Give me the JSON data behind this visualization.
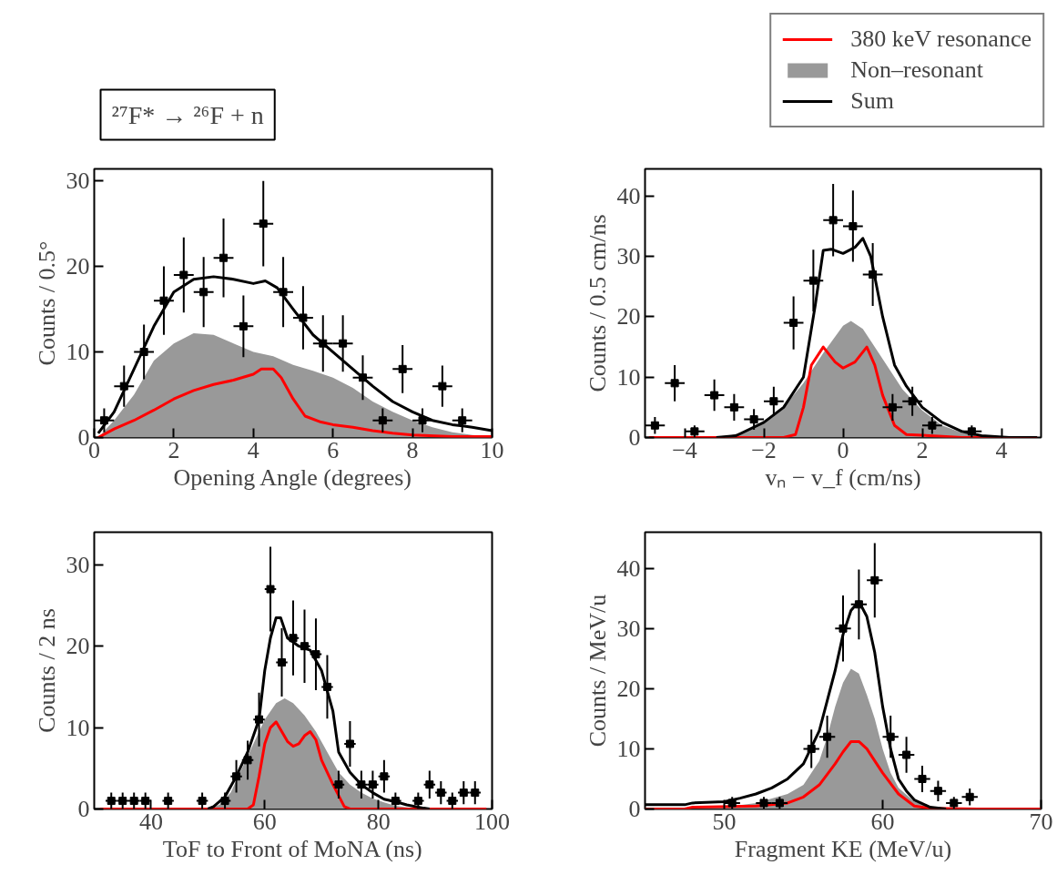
{
  "chart_data": [
    {
      "type": "line",
      "title": "²⁷F* → ²⁶F + n",
      "xlabel": "Opening Angle (degrees)",
      "ylabel": "Counts / 0.5°",
      "xlim": [
        0,
        10
      ],
      "ylim": [
        0,
        31.4
      ],
      "xticks": [
        0,
        2,
        4,
        6,
        8,
        10
      ],
      "yticks": [
        0,
        10,
        20,
        30
      ],
      "series": [
        {
          "type": "area",
          "color": "#999999",
          "x": [
            0.1,
            0.5,
            1,
            1.5,
            2,
            2.5,
            3,
            3.5,
            4,
            4.5,
            5,
            5.5,
            6,
            6.5,
            7,
            7.5,
            8,
            8.5,
            9,
            9.5,
            10
          ],
          "values": [
            0,
            2,
            5,
            9,
            11,
            12.2,
            12,
            11,
            10,
            9.5,
            8.5,
            7.8,
            7,
            5.8,
            4.2,
            3,
            2,
            1.2,
            0.6,
            0.3,
            0.1
          ]
        },
        {
          "color": "#ff0000",
          "x": [
            0.1,
            0.5,
            1,
            1.5,
            2,
            2.5,
            3,
            3.5,
            4,
            4.2,
            4.5,
            4.7,
            5,
            5.3,
            5.7,
            6,
            6.5,
            7,
            7.5,
            8,
            9,
            10
          ],
          "values": [
            0,
            1,
            2,
            3.2,
            4.5,
            5.5,
            6.2,
            6.7,
            7.4,
            8,
            8,
            7,
            4.5,
            2.5,
            1.8,
            1.5,
            1.2,
            0.8,
            0.5,
            0.3,
            0.1,
            0.1
          ]
        },
        {
          "color": "#000000",
          "x": [
            0.1,
            0.5,
            1,
            1.5,
            2,
            2.5,
            3,
            3.5,
            4,
            4.3,
            4.6,
            5,
            5.5,
            6,
            6.5,
            7,
            7.5,
            8,
            8.5,
            9,
            9.5,
            10
          ],
          "values": [
            0.5,
            3,
            8,
            13,
            17,
            18.5,
            18.8,
            18.5,
            18,
            18.3,
            17.5,
            15,
            12,
            10,
            8,
            6,
            4.2,
            3,
            2,
            1.5,
            1.2,
            0.8
          ]
        },
        {
          "type": "scatter",
          "marker": "square",
          "color": "#000000",
          "x": [
            0.25,
            0.75,
            1.25,
            1.75,
            2.25,
            2.75,
            3.25,
            3.75,
            4.25,
            4.75,
            5.25,
            5.75,
            6.25,
            6.75,
            7.25,
            7.75,
            8.25,
            8.75,
            9.25
          ],
          "values": [
            2,
            6,
            10,
            16,
            19,
            17,
            21,
            13,
            25,
            17,
            14,
            11,
            11,
            7,
            2,
            8,
            2,
            6,
            2
          ],
          "errors": [
            1.4,
            2.4,
            3.2,
            4,
            4.4,
            4.1,
            4.6,
            3.6,
            5,
            4.1,
            3.7,
            3.3,
            3.3,
            2.6,
            1.4,
            2.8,
            1.4,
            2.4,
            1.4
          ],
          "xerrors": [
            0.25,
            0.25,
            0.25,
            0.25,
            0.25,
            0.25,
            0.25,
            0.25,
            0.25,
            0.25,
            0.25,
            0.25,
            0.25,
            0.25,
            0.25,
            0.25,
            0.25,
            0.25,
            0.25
          ]
        }
      ]
    },
    {
      "type": "line",
      "xlabel": "vₙ − v_f (cm/ns)",
      "ylabel": "Counts / 0.5 cm/ns",
      "xlim": [
        -5,
        5
      ],
      "ylim": [
        0,
        44.5
      ],
      "xticks": [
        -4,
        -2,
        0,
        2,
        4
      ],
      "yticks": [
        0,
        10,
        20,
        30,
        40
      ],
      "legend": "top right",
      "series": [
        {
          "name": "380 keV resonance",
          "color": "#ff0000",
          "x": [
            -4.9,
            -1.5,
            -1.2,
            -1,
            -0.8,
            -0.5,
            -0.2,
            0,
            0.3,
            0.6,
            0.8,
            1,
            1.3,
            1.6,
            2.5,
            3,
            4.9
          ],
          "values": [
            0,
            0,
            0.5,
            5,
            12,
            15,
            12.5,
            11.5,
            12.5,
            15,
            12,
            7,
            2,
            0.5,
            0.2,
            0,
            0
          ]
        },
        {
          "type": "area",
          "name": "Non–resonant",
          "color": "#999999",
          "x": [
            -3,
            -2.5,
            -2,
            -1.5,
            -1,
            -0.5,
            0,
            0.2,
            0.5,
            1,
            1.5,
            2,
            2.5,
            3,
            3.5,
            4,
            4.8
          ],
          "values": [
            0,
            1,
            2.5,
            5,
            9,
            14,
            18.5,
            19.3,
            18,
            13,
            8,
            4.5,
            2,
            0.8,
            0.3,
            0.1,
            0
          ]
        },
        {
          "name": "Sum",
          "color": "#000000",
          "x": [
            -3.2,
            -2.7,
            -2,
            -1.5,
            -1,
            -0.7,
            -0.5,
            -0.3,
            0,
            0.3,
            0.5,
            0.7,
            1,
            1.3,
            1.6,
            2,
            2.5,
            3,
            3.5,
            4.2,
            4.9
          ],
          "values": [
            0,
            0.3,
            2.5,
            5,
            10,
            22,
            31,
            31.2,
            30.5,
            31.5,
            33,
            30,
            20,
            12,
            8.5,
            5,
            2.5,
            1,
            0.3,
            0,
            0
          ]
        },
        {
          "type": "scatter",
          "marker": "square",
          "color": "#000000",
          "x": [
            -4.75,
            -4.25,
            -3.75,
            -3.25,
            -2.75,
            -2.25,
            -1.75,
            -1.25,
            -0.75,
            -0.25,
            0.25,
            0.75,
            1.25,
            1.75,
            2.25,
            3.25
          ],
          "values": [
            2,
            9,
            1,
            7,
            5,
            3,
            6,
            19,
            26,
            36,
            35,
            27,
            5,
            6,
            2,
            1
          ],
          "errors": [
            1.4,
            3,
            1,
            2.6,
            2.2,
            1.7,
            2.4,
            4.4,
            5.1,
            6,
            5.9,
            5.2,
            2.2,
            2.4,
            1.4,
            1
          ],
          "xerrors": [
            0.25,
            0.25,
            0.25,
            0.25,
            0.25,
            0.25,
            0.25,
            0.25,
            0.25,
            0.25,
            0.25,
            0.25,
            0.25,
            0.25,
            0.25,
            0.25
          ]
        }
      ]
    },
    {
      "type": "line",
      "xlabel": "ToF to Front of MoNA (ns)",
      "ylabel": "Counts / 2 ns",
      "xlim": [
        30,
        100
      ],
      "ylim": [
        0,
        34
      ],
      "xticks": [
        40,
        60,
        80,
        100
      ],
      "yticks": [
        0,
        10,
        20,
        30
      ],
      "series": [
        {
          "type": "area",
          "color": "#999999",
          "x": [
            50,
            52,
            54,
            56,
            58,
            60,
            62,
            63.5,
            65,
            67,
            69,
            71,
            73,
            75,
            77,
            79,
            81,
            83,
            86,
            88
          ],
          "values": [
            0,
            0.5,
            2,
            5,
            8,
            11,
            13,
            13.6,
            13,
            11.5,
            9.5,
            7,
            4.5,
            3,
            2,
            1.3,
            0.8,
            0.4,
            0.1,
            0
          ]
        },
        {
          "color": "#ff0000",
          "x": [
            31,
            57,
            58,
            59,
            60,
            61,
            62,
            63,
            64,
            65,
            66,
            67,
            68,
            69,
            70,
            72,
            74,
            75,
            99
          ],
          "values": [
            0,
            0,
            0.5,
            4,
            8,
            10,
            10.7,
            9.5,
            8.3,
            7.7,
            8,
            9,
            9.5,
            8.5,
            6,
            3,
            0.3,
            0,
            0
          ]
        },
        {
          "color": "#000000",
          "x": [
            50,
            51,
            53,
            55,
            57,
            59,
            60,
            61,
            62,
            62.8,
            64,
            66,
            68,
            70,
            72,
            73,
            75,
            77,
            79,
            81,
            83,
            85,
            88,
            89
          ],
          "values": [
            0,
            0.3,
            1.5,
            4,
            7,
            11,
            17,
            21,
            23.5,
            23.5,
            21,
            20,
            19.5,
            17,
            12,
            7,
            4.5,
            3,
            2,
            1.2,
            0.9,
            0.5,
            0.1,
            0
          ]
        },
        {
          "type": "scatter",
          "marker": "square",
          "color": "#000000",
          "x": [
            33,
            35,
            37,
            39,
            43,
            49,
            53,
            55,
            57,
            59,
            61,
            63,
            65,
            67,
            69,
            71,
            73,
            75,
            77,
            79,
            81,
            83,
            87,
            89,
            91,
            93,
            95,
            97
          ],
          "values": [
            1,
            1,
            1,
            1,
            1,
            1,
            1,
            4,
            6,
            11,
            27,
            18,
            21,
            20,
            19,
            15,
            3,
            8,
            3,
            3,
            4,
            1,
            1,
            3,
            2,
            1,
            2,
            2
          ],
          "errors": [
            1,
            1,
            1,
            1,
            1,
            1,
            1,
            2,
            2.4,
            3.3,
            5.2,
            4.2,
            4.6,
            4.5,
            4.4,
            3.9,
            1.7,
            2.8,
            1.7,
            1.7,
            2,
            1,
            1,
            1.7,
            1.4,
            1,
            1.4,
            1.4
          ],
          "xerrors": [
            1,
            1,
            1,
            1,
            1,
            1,
            1,
            1,
            1,
            1,
            1,
            1,
            1,
            1,
            1,
            1,
            1,
            1,
            1,
            1,
            1,
            1,
            1,
            1,
            1,
            1,
            1,
            1
          ]
        }
      ]
    },
    {
      "type": "line",
      "xlabel": "Fragment KE (MeV/u)",
      "ylabel": "Counts / MeV/u",
      "xlim": [
        45,
        70
      ],
      "ylim": [
        0,
        46
      ],
      "xticks": [
        50,
        60,
        70
      ],
      "yticks": [
        0,
        10,
        20,
        30,
        40
      ],
      "series": [
        {
          "type": "area",
          "color": "#999999",
          "x": [
            45,
            50,
            52,
            54,
            55,
            56,
            56.5,
            57,
            57.5,
            58,
            58.5,
            59,
            59.5,
            60,
            60.5,
            61,
            62,
            63,
            64
          ],
          "values": [
            0,
            0.3,
            1,
            2.5,
            4,
            8,
            12,
            17,
            21,
            23.3,
            22.5,
            19,
            15,
            10,
            6,
            3.5,
            1.2,
            0.3,
            0
          ]
        },
        {
          "color": "#ff0000",
          "x": [
            45,
            47.5,
            48,
            52,
            54,
            55,
            56,
            57,
            57.5,
            58,
            58.5,
            59,
            60,
            61,
            62,
            63,
            66,
            70
          ],
          "values": [
            0,
            0,
            0.3,
            0.5,
            1,
            2,
            4,
            7.5,
            9.5,
            11.2,
            11.2,
            10,
            6,
            2.5,
            0.5,
            0.1,
            0,
            0
          ]
        },
        {
          "color": "#000000",
          "x": [
            45,
            47.5,
            48,
            50,
            51,
            52,
            53,
            54,
            55,
            56,
            56.5,
            57,
            57.5,
            58,
            58.5,
            59,
            59.5,
            60,
            60.5,
            61,
            61.5,
            62,
            63,
            64
          ],
          "values": [
            0.7,
            0.7,
            1,
            1.2,
            1.8,
            2.5,
            3.5,
            5,
            7.5,
            13,
            18,
            23,
            29,
            33,
            34.5,
            32,
            26,
            17,
            10,
            5,
            3,
            1.5,
            0.3,
            0
          ]
        },
        {
          "type": "scatter",
          "marker": "square",
          "color": "#000000",
          "x": [
            50.5,
            52.5,
            53.5,
            55.5,
            56.5,
            57.5,
            58.5,
            59.5,
            60.5,
            61.5,
            62.5,
            63.5,
            64.5,
            65.5
          ],
          "values": [
            1,
            1,
            1,
            10,
            12,
            30,
            34,
            38,
            12,
            9,
            5,
            3,
            1,
            2
          ],
          "errors": [
            1,
            1,
            1,
            3.2,
            3.5,
            5.5,
            5.8,
            6.2,
            3.5,
            3,
            2.2,
            1.7,
            1,
            1.4
          ],
          "xerrors": [
            0.5,
            0.5,
            0.5,
            0.5,
            0.5,
            0.5,
            0.5,
            0.5,
            0.5,
            0.5,
            0.5,
            0.5,
            0.5,
            0.5
          ]
        }
      ]
    }
  ]
}
